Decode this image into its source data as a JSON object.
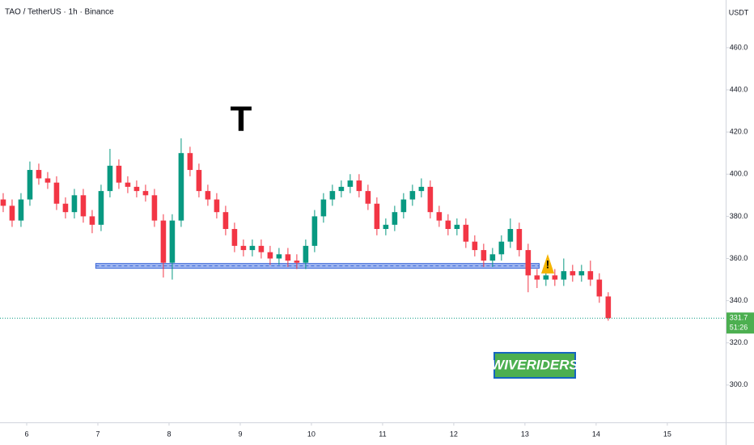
{
  "chart_data": {
    "type": "candlestick",
    "title": "TAO / TetherUS · 1h · Binance",
    "currency": "USDT",
    "logo": "T",
    "watermark": "WIVERIDERS",
    "countdown": "51:26",
    "up_color": "#089981",
    "down_color": "#f23645",
    "x": [
      5.67,
      5.795,
      5.92,
      6.045,
      6.17,
      6.295,
      6.42,
      6.545,
      6.67,
      6.795,
      6.92,
      7.045,
      7.17,
      7.295,
      7.42,
      7.545,
      7.67,
      7.795,
      7.92,
      8.045,
      8.17,
      8.295,
      8.42,
      8.545,
      8.67,
      8.795,
      8.92,
      9.045,
      9.17,
      9.295,
      9.42,
      9.545,
      9.67,
      9.795,
      9.92,
      10.045,
      10.17,
      10.295,
      10.42,
      10.545,
      10.67,
      10.795,
      10.92,
      11.045,
      11.17,
      11.295,
      11.42,
      11.545,
      11.67,
      11.795,
      11.92,
      12.045,
      12.17,
      12.295,
      12.42,
      12.545,
      12.67,
      12.795,
      12.92,
      13.045,
      13.17,
      13.295,
      13.42,
      13.545,
      13.67,
      13.795,
      13.92,
      14.045,
      14.17
    ],
    "open": [
      388,
      385,
      378,
      388,
      402,
      398,
      396,
      386,
      382,
      390,
      380,
      376,
      392,
      404,
      396,
      394,
      392,
      390,
      378,
      358,
      378,
      410,
      402,
      392,
      388,
      382,
      374,
      366,
      364,
      366,
      363,
      360,
      362,
      359,
      358,
      366,
      380,
      388,
      392,
      394,
      397,
      392,
      386,
      374,
      376,
      382,
      388,
      392,
      394,
      382,
      378,
      374,
      376,
      368,
      364,
      359,
      362,
      368,
      374,
      364,
      352,
      350,
      352,
      350,
      354,
      352,
      354,
      350,
      342
    ],
    "high": [
      391,
      388,
      391,
      406,
      405,
      401,
      399,
      389,
      393,
      393,
      383,
      395,
      412,
      407,
      399,
      397,
      395,
      393,
      381,
      381,
      417,
      413,
      405,
      395,
      391,
      385,
      377,
      369,
      369,
      369,
      366,
      365,
      365,
      362,
      369,
      383,
      391,
      395,
      397,
      400,
      400,
      395,
      389,
      379,
      385,
      391,
      395,
      398,
      397,
      385,
      381,
      379,
      379,
      371,
      367,
      365,
      371,
      379,
      377,
      367,
      355,
      355,
      355,
      360,
      357,
      357,
      359,
      353,
      344
    ],
    "low": [
      382,
      375,
      375,
      385,
      395,
      393,
      383,
      379,
      379,
      377,
      372,
      373,
      389,
      393,
      391,
      389,
      387,
      375,
      351,
      350,
      375,
      399,
      389,
      385,
      379,
      371,
      363,
      361,
      361,
      360,
      357,
      357,
      356,
      355,
      355,
      363,
      377,
      385,
      389,
      391,
      389,
      383,
      371,
      371,
      373,
      379,
      385,
      389,
      379,
      375,
      371,
      371,
      365,
      361,
      356,
      356,
      359,
      365,
      361,
      344,
      346,
      347,
      347,
      347,
      349,
      349,
      347,
      339,
      330.5
    ],
    "close": [
      385,
      378,
      388,
      402,
      398,
      396,
      386,
      382,
      390,
      380,
      376,
      392,
      404,
      396,
      394,
      392,
      390,
      378,
      358,
      378,
      410,
      402,
      392,
      388,
      382,
      374,
      366,
      364,
      366,
      363,
      360,
      362,
      359,
      358,
      366,
      380,
      388,
      392,
      394,
      397,
      392,
      386,
      374,
      376,
      382,
      388,
      392,
      394,
      382,
      378,
      374,
      376,
      368,
      364,
      359,
      362,
      368,
      374,
      364,
      352,
      350,
      352,
      350,
      354,
      352,
      354,
      350,
      342,
      331.7
    ],
    "support": {
      "value": 356.5,
      "x": [
        6.97,
        13.2
      ]
    },
    "xlim": [
      5.625,
      15.82
    ],
    "xticks": [
      6,
      7,
      8,
      9,
      10,
      11,
      12,
      13,
      14,
      15
    ],
    "ylim": [
      282.3,
      482.6
    ],
    "yticks": [
      {
        "value": 300,
        "label": "300.0"
      },
      {
        "value": 320,
        "label": "320.0"
      },
      {
        "value": 340,
        "label": "340.0"
      },
      {
        "value": 360,
        "label": "360.0"
      },
      {
        "value": 380,
        "label": "380.0"
      },
      {
        "value": 400,
        "label": "400.0"
      },
      {
        "value": 420,
        "label": "420.0"
      },
      {
        "value": 440,
        "label": "440.0"
      },
      {
        "value": 460,
        "label": "460.0"
      }
    ]
  }
}
